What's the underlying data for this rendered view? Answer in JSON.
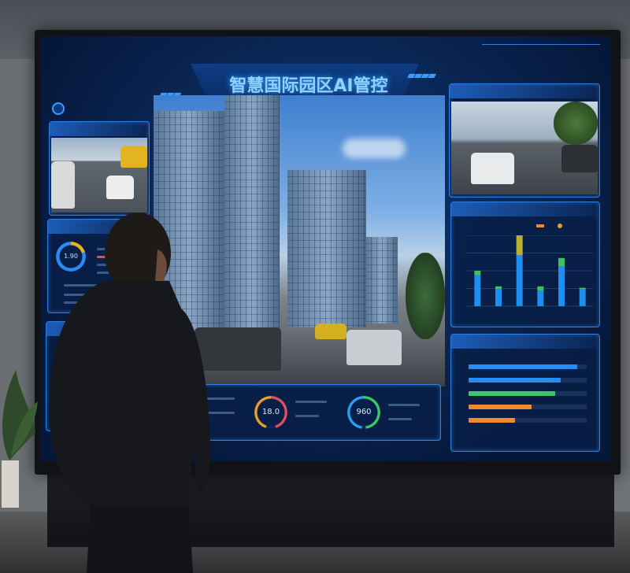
{
  "screen": {
    "title": "智慧国际园区AI管控",
    "colors": {
      "accent": "#3a9cff",
      "panel": "#081e46",
      "green": "#3cc86a",
      "orange": "#f08a30",
      "yellow": "#e0b020"
    }
  },
  "gauges": {
    "left_panel_value": "1.90",
    "bottom_left_value": "18.0",
    "bottom_right_value": "960"
  },
  "chart_data": [
    {
      "type": "bar",
      "stacked": true,
      "categories": [
        "",
        "",
        "",
        "",
        "",
        ""
      ],
      "series": [
        {
          "values": [
            22,
            12,
            36,
            11,
            28,
            12
          ]
        },
        {
          "values": [
            3,
            2,
            14,
            3,
            6,
            1
          ]
        }
      ],
      "ylim": [
        0,
        50
      ],
      "grid": true
    },
    {
      "type": "bar",
      "orientation": "horizontal",
      "values": [
        0.92,
        0.78,
        0.73,
        0.53,
        0.39
      ],
      "colors": [
        "#2a8cf0",
        "#2a8cf0",
        "#3cc86a",
        "#f08a30",
        "#f08a30"
      ],
      "xlim": [
        0,
        1
      ]
    }
  ]
}
